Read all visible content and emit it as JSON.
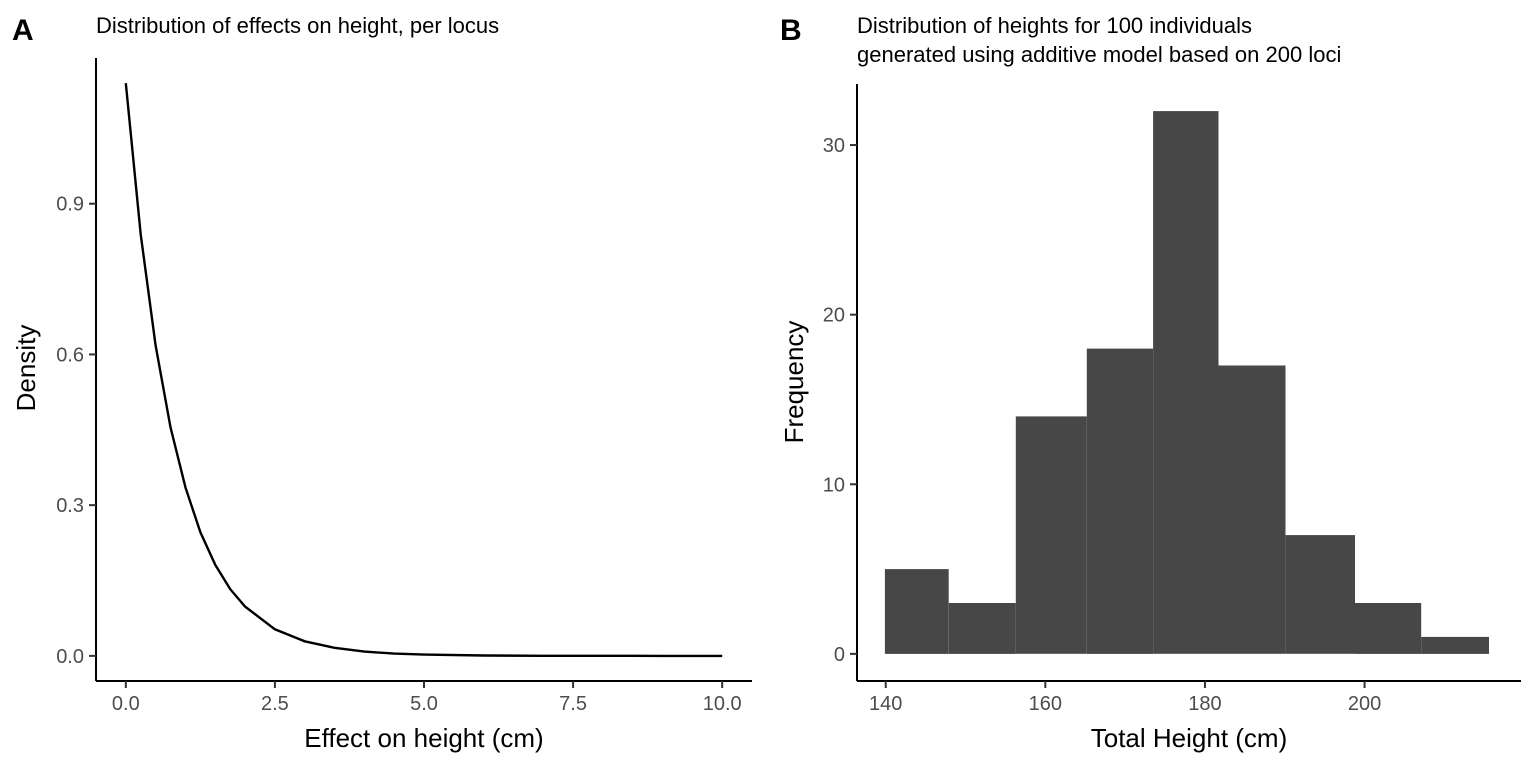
{
  "chart_data": [
    {
      "panel": "A",
      "type": "line",
      "title": "Distribution of effects on height, per locus",
      "xlabel": "Effect on height (cm)",
      "ylabel": "Density",
      "xlim": [
        -0.5,
        10.5
      ],
      "ylim": [
        -0.05,
        1.19
      ],
      "xticks": [
        0,
        2.5,
        5,
        7.5,
        10
      ],
      "xtick_labels": [
        "0.0",
        "2.5",
        "5.0",
        "7.5",
        "10.0"
      ],
      "yticks": [
        0,
        0.3,
        0.6,
        0.9
      ],
      "ytick_labels": [
        "0.0",
        "0.3",
        "0.6",
        "0.9"
      ],
      "grid": false,
      "series": [
        {
          "x": [
            0,
            0.25,
            0.5,
            0.75,
            1,
            1.25,
            1.5,
            1.75,
            2,
            2.5,
            3,
            3.5,
            4,
            4.5,
            5,
            6,
            7,
            8,
            9,
            10
          ],
          "y": [
            1.14,
            0.839,
            0.618,
            0.455,
            0.335,
            0.246,
            0.181,
            0.133,
            0.098,
            0.053,
            0.029,
            0.016,
            0.0085,
            0.0046,
            0.0025,
            0.0007,
            0.0002,
            0.0001,
            0.0,
            0.0
          ]
        }
      ]
    },
    {
      "panel": "B",
      "type": "bar",
      "title": "Distribution of heights for 100 individuals\ngenerated using additive model based on 200 loci",
      "xlabel": "Total Height (cm)",
      "ylabel": "Frequency",
      "xlim": [
        136.4,
        219.6
      ],
      "ylim": [
        -1.6,
        33.6
      ],
      "xticks": [
        140,
        160,
        180,
        200
      ],
      "xtick_labels": [
        "140",
        "160",
        "180",
        "200"
      ],
      "yticks": [
        0,
        10,
        20,
        30
      ],
      "ytick_labels": [
        "0",
        "10",
        "20",
        "30"
      ],
      "grid": false,
      "bins": [
        {
          "x0": 139.9,
          "x1": 147.9,
          "count": 5
        },
        {
          "x0": 147.9,
          "x1": 156.3,
          "count": 3
        },
        {
          "x0": 156.3,
          "x1": 165.2,
          "count": 14
        },
        {
          "x0": 165.2,
          "x1": 173.5,
          "count": 18
        },
        {
          "x0": 173.5,
          "x1": 181.7,
          "count": 32
        },
        {
          "x0": 181.7,
          "x1": 190.1,
          "count": 17
        },
        {
          "x0": 190.1,
          "x1": 198.8,
          "count": 7
        },
        {
          "x0": 198.8,
          "x1": 207.1,
          "count": 3
        },
        {
          "x0": 207.1,
          "x1": 215.6,
          "count": 1
        }
      ]
    }
  ]
}
